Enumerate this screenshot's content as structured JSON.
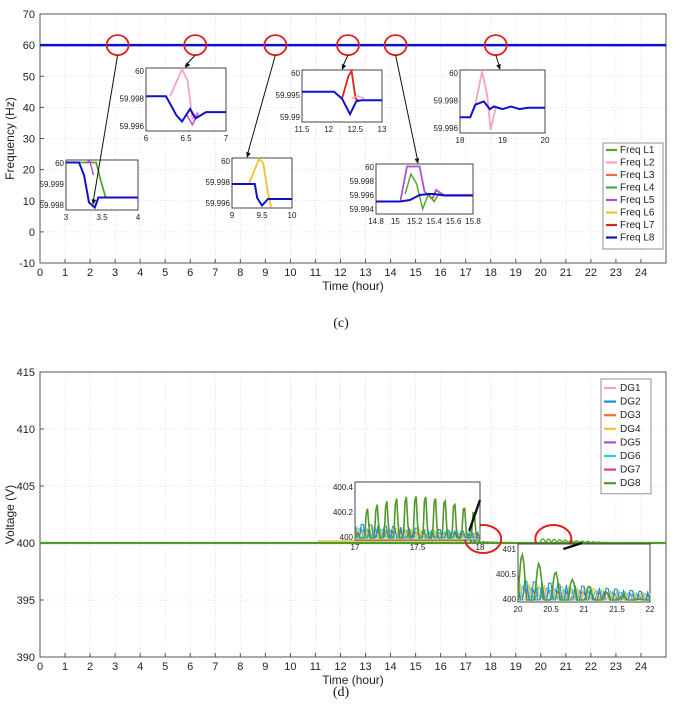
{
  "chart_data": [
    {
      "type": "line",
      "caption_letter": "c",
      "xlabel": "Time (hour)",
      "ylabel": "Frequency (Hz)",
      "xlim": [
        0,
        25
      ],
      "ylim": [
        -10,
        70
      ],
      "xticks": [
        0,
        1,
        2,
        3,
        4,
        5,
        6,
        7,
        8,
        9,
        10,
        11,
        12,
        13,
        14,
        15,
        16,
        17,
        18,
        19,
        20,
        21,
        22,
        23,
        24
      ],
      "yticks": [
        -10,
        0,
        10,
        20,
        30,
        40,
        50,
        60,
        70
      ],
      "series_color_default": "#1f1fbf",
      "series": [
        {
          "name": "Freq L1",
          "color": "#55a630"
        },
        {
          "name": "Freq L2",
          "color": "#f7a1c4"
        },
        {
          "name": "Freq L3",
          "color": "#f26b3a"
        },
        {
          "name": "Freq L4",
          "color": "#36b34a"
        },
        {
          "name": "Freq L5",
          "color": "#b04fd6"
        },
        {
          "name": "Freq L6",
          "color": "#f2c12e"
        },
        {
          "name": "Freq L7",
          "color": "#e0201b"
        },
        {
          "name": "Freq L8",
          "color": "#1010c8"
        }
      ],
      "main_value": 60,
      "event_circles_x": [
        3.1,
        6.2,
        9.4,
        12.3,
        14.2,
        18.2
      ],
      "insets": [
        {
          "xticks": [
            "3",
            "3.5",
            "4"
          ],
          "yticks": [
            "60",
            "59.999",
            "59.998"
          ],
          "active": "#55a630"
        },
        {
          "xticks": [
            "6",
            "6.5",
            "7"
          ],
          "yticks": [
            "60",
            "59.998",
            "59.996"
          ],
          "active": "#f7a1c4"
        },
        {
          "xticks": [
            "9",
            "9.5",
            "10"
          ],
          "yticks": [
            "60",
            "59.998",
            "59.996"
          ],
          "active": "#f2c12e"
        },
        {
          "xticks": [
            "11.5",
            "12",
            "12.5",
            "13"
          ],
          "yticks": [
            "60",
            "59.995",
            "59.99"
          ],
          "active": "#e0201b"
        },
        {
          "xticks": [
            "14.8",
            "15",
            "15.2",
            "15.4",
            "15.6",
            "15.8"
          ],
          "yticks": [
            "60",
            "59.998",
            "59.996",
            "59.994"
          ],
          "active": "#b04fd6"
        },
        {
          "xticks": [
            "18",
            "19",
            "20"
          ],
          "yticks": [
            "60",
            "59.998",
            "59.996"
          ],
          "active": "#f7a1c4"
        }
      ]
    },
    {
      "type": "line",
      "caption_letter": "d",
      "xlabel": "Time (hour)",
      "ylabel": "Voltage (V)",
      "xlim": [
        0,
        25
      ],
      "ylim": [
        390,
        415
      ],
      "xticks": [
        0,
        1,
        2,
        3,
        4,
        5,
        6,
        7,
        8,
        9,
        10,
        11,
        12,
        13,
        14,
        15,
        16,
        17,
        18,
        19,
        20,
        21,
        22,
        23,
        24
      ],
      "yticks": [
        390,
        395,
        400,
        405,
        410,
        415
      ],
      "series": [
        {
          "name": "DG1",
          "color": "#f7a1c4"
        },
        {
          "name": "DG2",
          "color": "#1a8fd6"
        },
        {
          "name": "DG3",
          "color": "#f26b3a"
        },
        {
          "name": "DG4",
          "color": "#f2c12e"
        },
        {
          "name": "DG5",
          "color": "#b04fd6"
        },
        {
          "name": "DG6",
          "color": "#17d4d4"
        },
        {
          "name": "DG7",
          "color": "#e8329a"
        },
        {
          "name": "DG8",
          "color": "#4f9a2a"
        }
      ],
      "main_value": 400,
      "event_circles_x": [
        17.7,
        20.5
      ],
      "insets": [
        {
          "xticks": [
            "17",
            "17.5",
            "18"
          ],
          "yticks": [
            "400.4",
            "400.2",
            "400"
          ]
        },
        {
          "xticks": [
            "20",
            "20.5",
            "21",
            "21.5",
            "22"
          ],
          "yticks": [
            "401",
            "400.5",
            "400"
          ]
        }
      ]
    }
  ]
}
